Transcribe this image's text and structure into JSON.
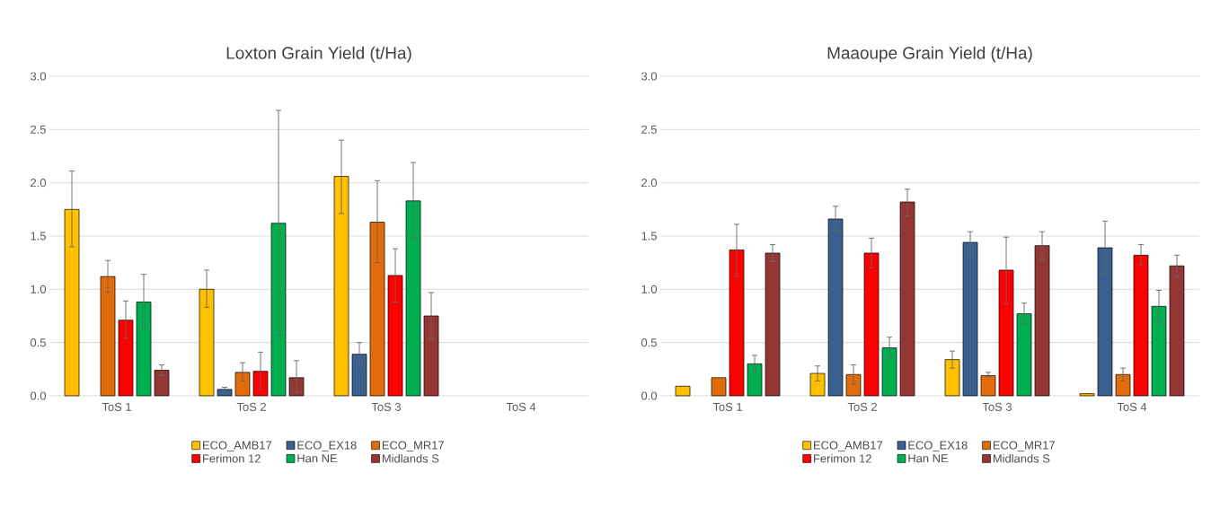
{
  "chart_data": [
    {
      "type": "bar",
      "title": "Loxton Grain Yield (t/Ha)",
      "categories": [
        "ToS 1",
        "ToS 2",
        "ToS 3",
        "ToS 4"
      ],
      "ylim": [
        0,
        3
      ],
      "yticks": [
        {
          "value": 0,
          "label": "0.0"
        },
        {
          "value": 0.5,
          "label": "0.5"
        },
        {
          "value": 1,
          "label": "1.0"
        },
        {
          "value": 1.5,
          "label": "1.5"
        },
        {
          "value": 2,
          "label": "2.0"
        },
        {
          "value": 2.5,
          "label": "2.5"
        },
        {
          "value": 3,
          "label": "3.0"
        }
      ],
      "grid": "y",
      "legend": "bottom",
      "series": [
        {
          "name": "ECO_AMB17",
          "color": "#ffc000",
          "values": [
            1.75,
            1.0,
            2.06,
            null
          ],
          "errors": [
            [
              1.4,
              2.11
            ],
            [
              0.83,
              1.18
            ],
            [
              1.71,
              2.4
            ],
            null
          ]
        },
        {
          "name": "ECO_EX18",
          "color": "#3a6090",
          "values": [
            null,
            0.06,
            0.39,
            null
          ],
          "errors": [
            null,
            [
              0.04,
              0.08
            ],
            [
              0.28,
              0.5
            ],
            null
          ]
        },
        {
          "name": "ECO_MR17",
          "color": "#e36c0a",
          "values": [
            1.12,
            0.22,
            1.63,
            null
          ],
          "errors": [
            [
              0.97,
              1.27
            ],
            [
              0.14,
              0.31
            ],
            [
              1.25,
              2.02
            ],
            null
          ]
        },
        {
          "name": "Ferimon 12",
          "color": "#ff0000",
          "values": [
            0.71,
            0.23,
            1.13,
            null
          ],
          "errors": [
            [
              0.54,
              0.89
            ],
            [
              0.06,
              0.41
            ],
            [
              0.88,
              1.38
            ],
            null
          ]
        },
        {
          "name": "Han NE",
          "color": "#00b050",
          "values": [
            0.88,
            1.62,
            1.83,
            null
          ],
          "errors": [
            [
              0.63,
              1.14
            ],
            [
              0.57,
              2.68
            ],
            [
              1.47,
              2.19
            ],
            null
          ]
        },
        {
          "name": "Midlands S",
          "color": "#943634",
          "values": [
            0.24,
            0.17,
            0.75,
            null
          ],
          "errors": [
            [
              0.19,
              0.29
            ],
            [
              0.03,
              0.33
            ],
            [
              0.53,
              0.97
            ],
            null
          ]
        }
      ]
    },
    {
      "type": "bar",
      "title": "Maaoupe Grain Yield (t/Ha)",
      "categories": [
        "ToS 1",
        "ToS 2",
        "ToS 3",
        "ToS 4"
      ],
      "ylim": [
        0,
        3
      ],
      "yticks": [
        {
          "value": 0,
          "label": "0.0"
        },
        {
          "value": 0.5,
          "label": "0.5"
        },
        {
          "value": 1,
          "label": "1.0"
        },
        {
          "value": 1.5,
          "label": "1.5"
        },
        {
          "value": 2,
          "label": "2.0"
        },
        {
          "value": 2.5,
          "label": "2.5"
        },
        {
          "value": 3,
          "label": "3.0"
        }
      ],
      "grid": "y",
      "legend": "bottom",
      "series": [
        {
          "name": "ECO_AMB17",
          "color": "#ffc000",
          "values": [
            0.09,
            0.21,
            0.34,
            0.02
          ],
          "errors": [
            null,
            [
              0.14,
              0.28
            ],
            [
              0.26,
              0.42
            ],
            null
          ]
        },
        {
          "name": "ECO_EX18",
          "color": "#3a6090",
          "values": [
            null,
            1.66,
            1.44,
            1.39
          ],
          "errors": [
            null,
            [
              1.55,
              1.78
            ],
            [
              1.33,
              1.54
            ],
            [
              1.15,
              1.64
            ]
          ]
        },
        {
          "name": "ECO_MR17",
          "color": "#e36c0a",
          "values": [
            0.17,
            0.2,
            0.19,
            0.2
          ],
          "errors": [
            null,
            [
              0.11,
              0.29
            ],
            [
              0.18,
              0.22
            ],
            [
              0.14,
              0.26
            ]
          ]
        },
        {
          "name": "Ferimon 12",
          "color": "#ff0000",
          "values": [
            1.37,
            1.34,
            1.18,
            1.32
          ],
          "errors": [
            [
              1.12,
              1.61
            ],
            [
              1.2,
              1.48
            ],
            [
              0.86,
              1.49
            ],
            [
              1.23,
              1.42
            ]
          ]
        },
        {
          "name": "Han NE",
          "color": "#00b050",
          "values": [
            0.3,
            0.45,
            0.77,
            0.84
          ],
          "errors": [
            [
              0.22,
              0.38
            ],
            [
              0.35,
              0.55
            ],
            [
              0.68,
              0.87
            ],
            [
              0.69,
              0.99
            ]
          ]
        },
        {
          "name": "Midlands S",
          "color": "#943634",
          "values": [
            1.34,
            1.82,
            1.41,
            1.22
          ],
          "errors": [
            [
              1.26,
              1.42
            ],
            [
              1.69,
              1.94
            ],
            [
              1.28,
              1.54
            ],
            [
              1.12,
              1.32
            ]
          ]
        }
      ]
    }
  ]
}
